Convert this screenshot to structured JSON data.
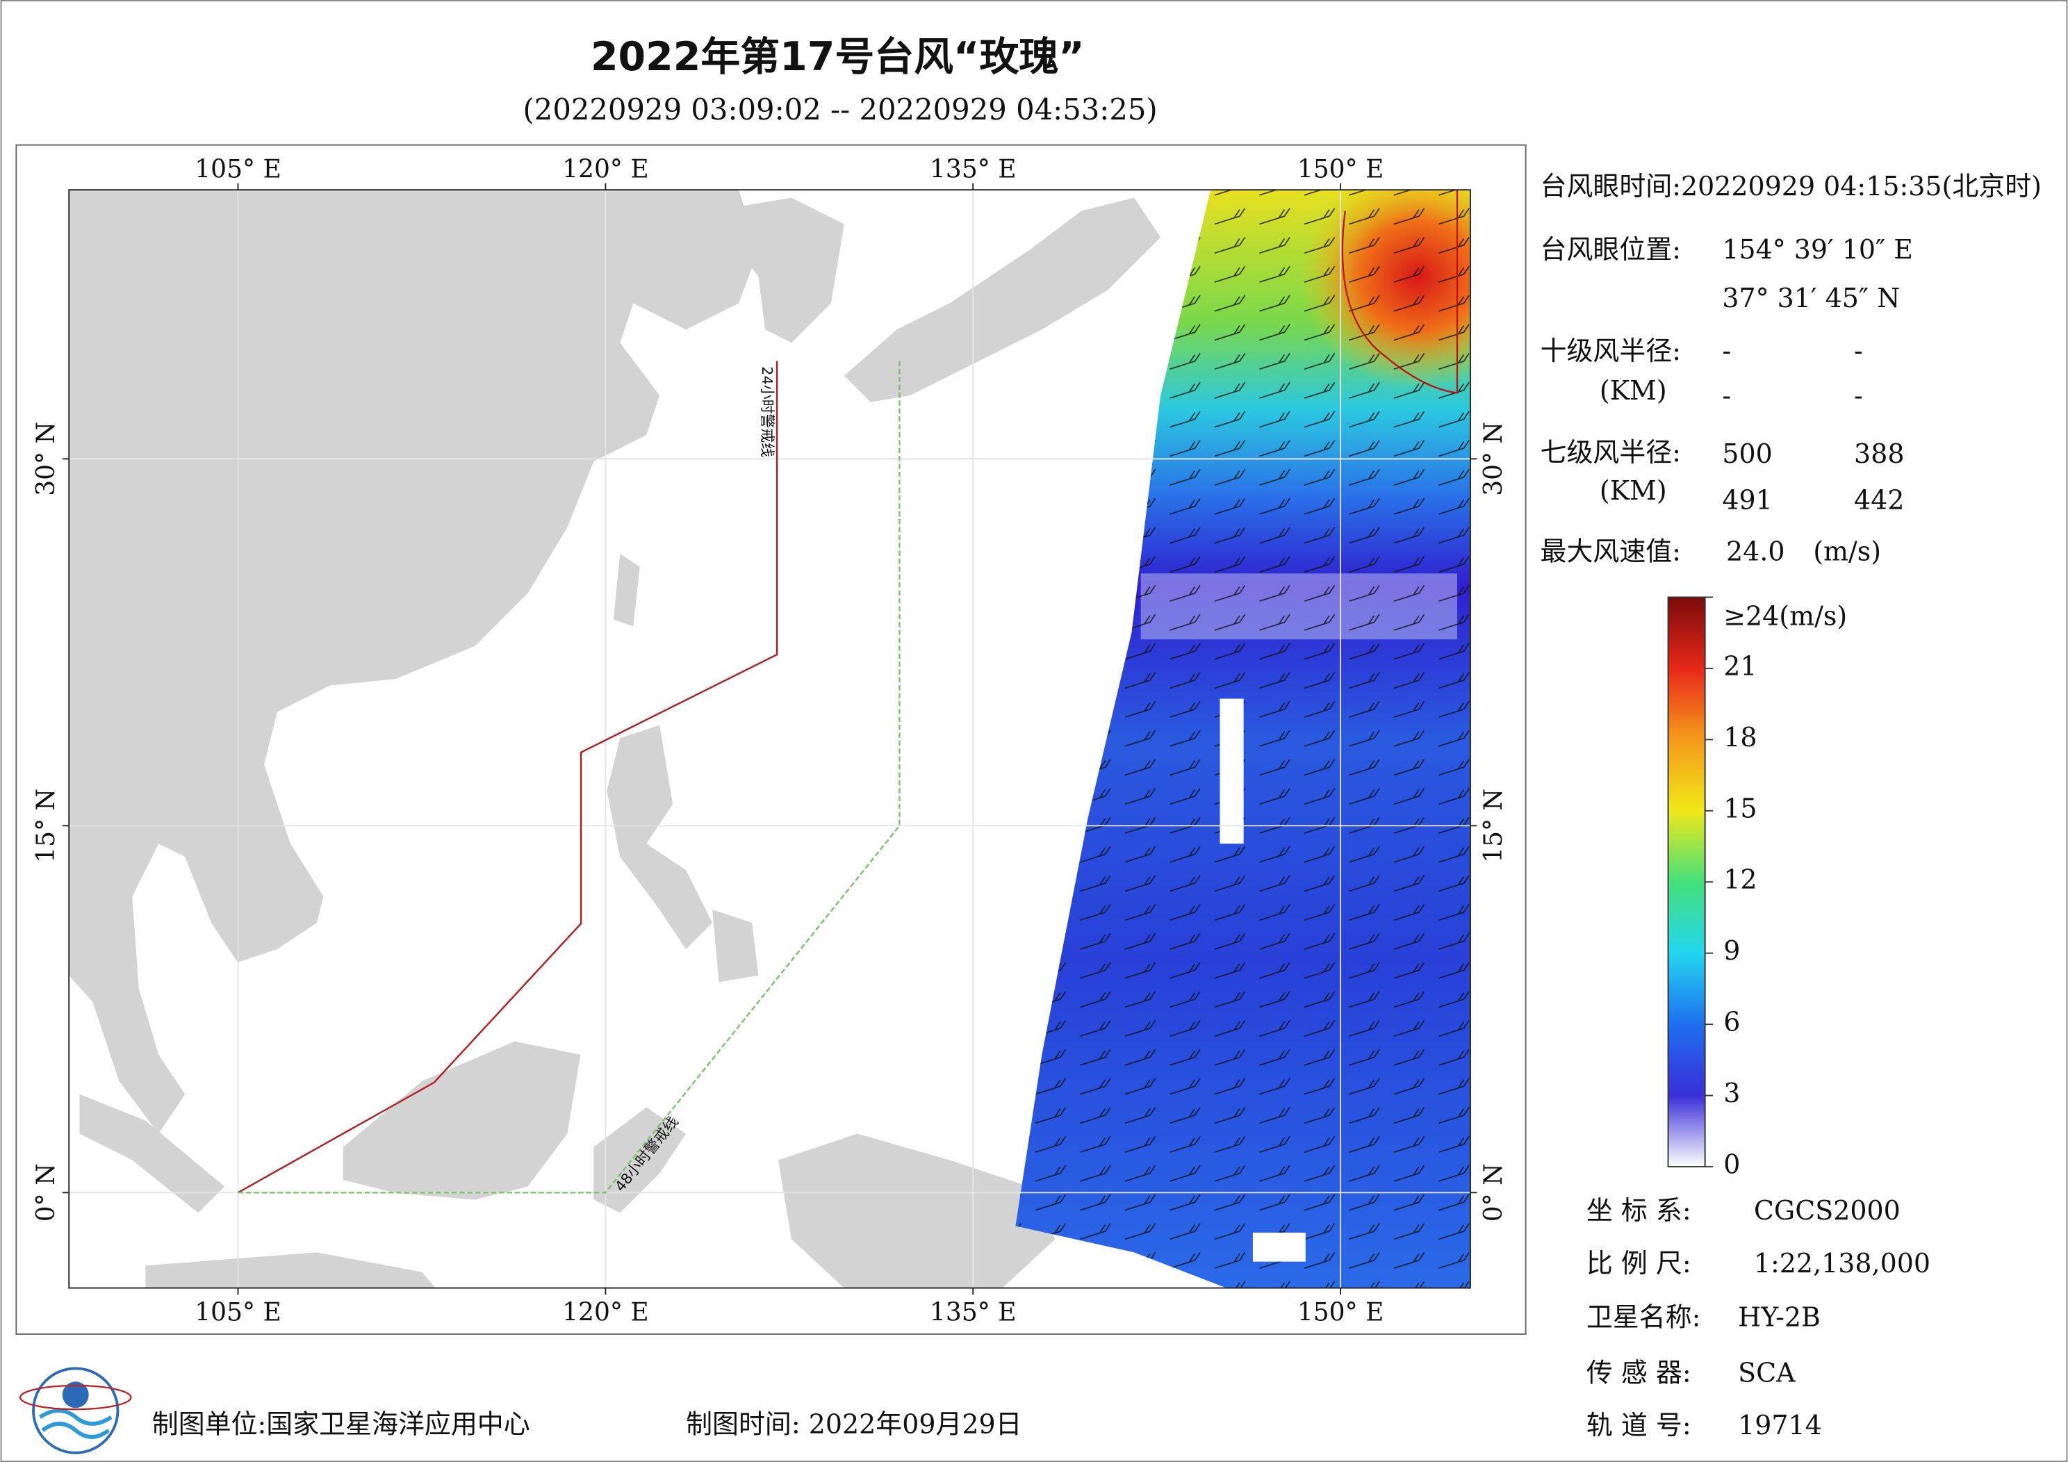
{
  "header": {
    "title": "2022年第17号台风“玫瑰”",
    "subtitle": "(20220929 03:09:02 -- 20220929 04:53:25)"
  },
  "map": {
    "xlim": [
      98.1,
      155.3
    ],
    "ylim": [
      -3.9,
      41.0
    ],
    "xticks": [
      {
        "value": 105,
        "label": "105° E"
      },
      {
        "value": 120,
        "label": "120° E"
      },
      {
        "value": 135,
        "label": "135° E"
      },
      {
        "value": 150,
        "label": "150° E"
      }
    ],
    "yticks": [
      {
        "value": 0,
        "label": "0° N"
      },
      {
        "value": 15,
        "label": "15° N"
      },
      {
        "value": 30,
        "label": "30° N"
      }
    ],
    "grid": true,
    "warning_lines": [
      {
        "label": "24小时警戒线",
        "color": "#b22222",
        "points": [
          [
            105,
            0
          ],
          [
            113,
            4.5
          ],
          [
            119,
            11
          ],
          [
            119,
            18
          ],
          [
            127,
            22
          ],
          [
            127,
            34
          ]
        ]
      },
      {
        "label": "48小时警戒线",
        "color": "#7cc46a",
        "points": [
          [
            105,
            0
          ],
          [
            120,
            0
          ],
          [
            132,
            15
          ],
          [
            132,
            34
          ]
        ]
      }
    ]
  },
  "info": {
    "eye_time": "台风眼时间:20220929 04:15:35(北京时)",
    "eye_position_label": "台风眼位置:",
    "eye_lon": "154° 39′ 10″ E",
    "eye_lat": "37° 31′ 45″ N",
    "r10_label": "十级风半径:",
    "r10_unit": "(KM)",
    "r10_values": [
      "-",
      "-",
      "-",
      "-"
    ],
    "r7_label": "七级风半径:",
    "r7_unit": "(KM)",
    "r7_values": [
      "500",
      "388",
      "491",
      "442"
    ],
    "max_wind_label": "最大风速值:",
    "max_wind_value": "24.0",
    "max_wind_unit": "(m/s)"
  },
  "colorbar": {
    "lim": [
      0,
      24
    ],
    "ticks": [
      0,
      3,
      6,
      9,
      12,
      15,
      18,
      21,
      {
        "value": 24,
        "label": "≥24(m/s)"
      }
    ],
    "colors": [
      "#ffffff",
      "#3a2fd8",
      "#1e6ff0",
      "#22d6f0",
      "#44e07a",
      "#f0e818",
      "#f59a1a",
      "#e8281a",
      "#7a0a0a"
    ]
  },
  "meta": {
    "coord_label": "坐 标 系:",
    "coord_value": "CGCS2000",
    "scale_label": "比 例 尺:",
    "scale_value": "1:22,138,000",
    "sat_label": "卫星名称:",
    "sat_value": "HY-2B",
    "sensor_label": "传 感 器:",
    "sensor_value": "SCA",
    "orbit_label": "轨 道 号:",
    "orbit_value": "19714"
  },
  "footer": {
    "unit": "制图单位:国家卫星海洋应用中心",
    "time": "制图时间:  2022年09月29日"
  }
}
